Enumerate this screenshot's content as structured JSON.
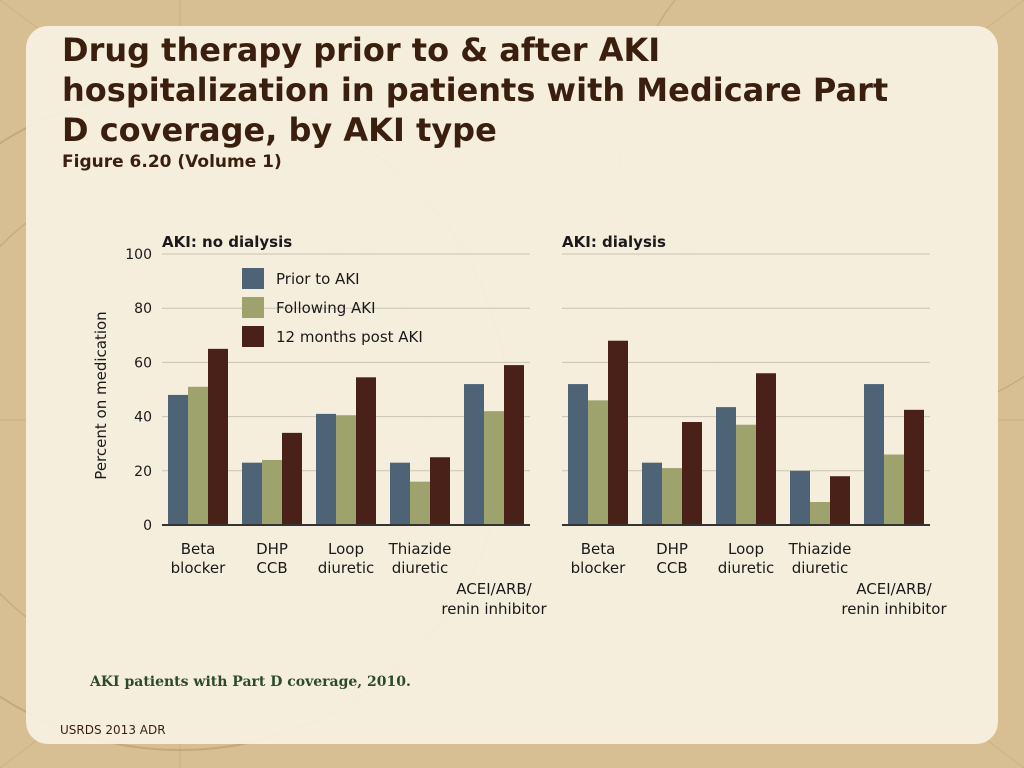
{
  "slide": {
    "title": "Drug therapy prior to & after AKI hospitalization in patients with Medicare Part D coverage, by AKI type",
    "subtitle": "Figure 6.20 (Volume 1)",
    "note": "AKI patients with Part D coverage, 2010.",
    "footer": "USRDS 2013 ADR"
  },
  "colors": {
    "prior": "#4f6377",
    "following": "#9ea26c",
    "post12": "#4a2119",
    "grid": "#c9c3b5",
    "axis": "#333333"
  },
  "chart_data": [
    {
      "type": "bar",
      "panel_title": "AKI: no dialysis",
      "ylabel": "Percent on medication",
      "ylim": [
        0,
        100
      ],
      "yticks": [
        "0",
        "20",
        "40",
        "60",
        "80",
        "100"
      ],
      "categories": [
        [
          "Beta",
          "blocker"
        ],
        [
          "DHP",
          "CCB"
        ],
        [
          "Loop",
          "diuretic"
        ],
        [
          "Thiazide",
          "diuretic"
        ],
        [
          "ACEI/ARB/",
          "renin inhibitor"
        ]
      ],
      "series": [
        {
          "name": "Prior to AKI",
          "values": [
            48,
            23,
            41,
            23,
            52
          ]
        },
        {
          "name": "Following AKI",
          "values": [
            51,
            24,
            40.5,
            16,
            42
          ]
        },
        {
          "name": "12 months post AKI",
          "values": [
            65,
            34,
            54.5,
            25,
            59
          ]
        }
      ],
      "legend": "top-left"
    },
    {
      "type": "bar",
      "panel_title": "AKI: dialysis",
      "ylim": [
        0,
        100
      ],
      "categories": [
        [
          "Beta",
          "blocker"
        ],
        [
          "DHP",
          "CCB"
        ],
        [
          "Loop",
          "diuretic"
        ],
        [
          "Thiazide",
          "diuretic"
        ],
        [
          "ACEI/ARB/",
          "renin inhibitor"
        ]
      ],
      "series": [
        {
          "name": "Prior to AKI",
          "values": [
            52,
            23,
            43.5,
            20,
            52
          ]
        },
        {
          "name": "Following AKI",
          "values": [
            46,
            21,
            37,
            8.5,
            26
          ]
        },
        {
          "name": "12 months post AKI",
          "values": [
            68,
            38,
            56,
            18,
            42.5
          ]
        }
      ]
    }
  ]
}
